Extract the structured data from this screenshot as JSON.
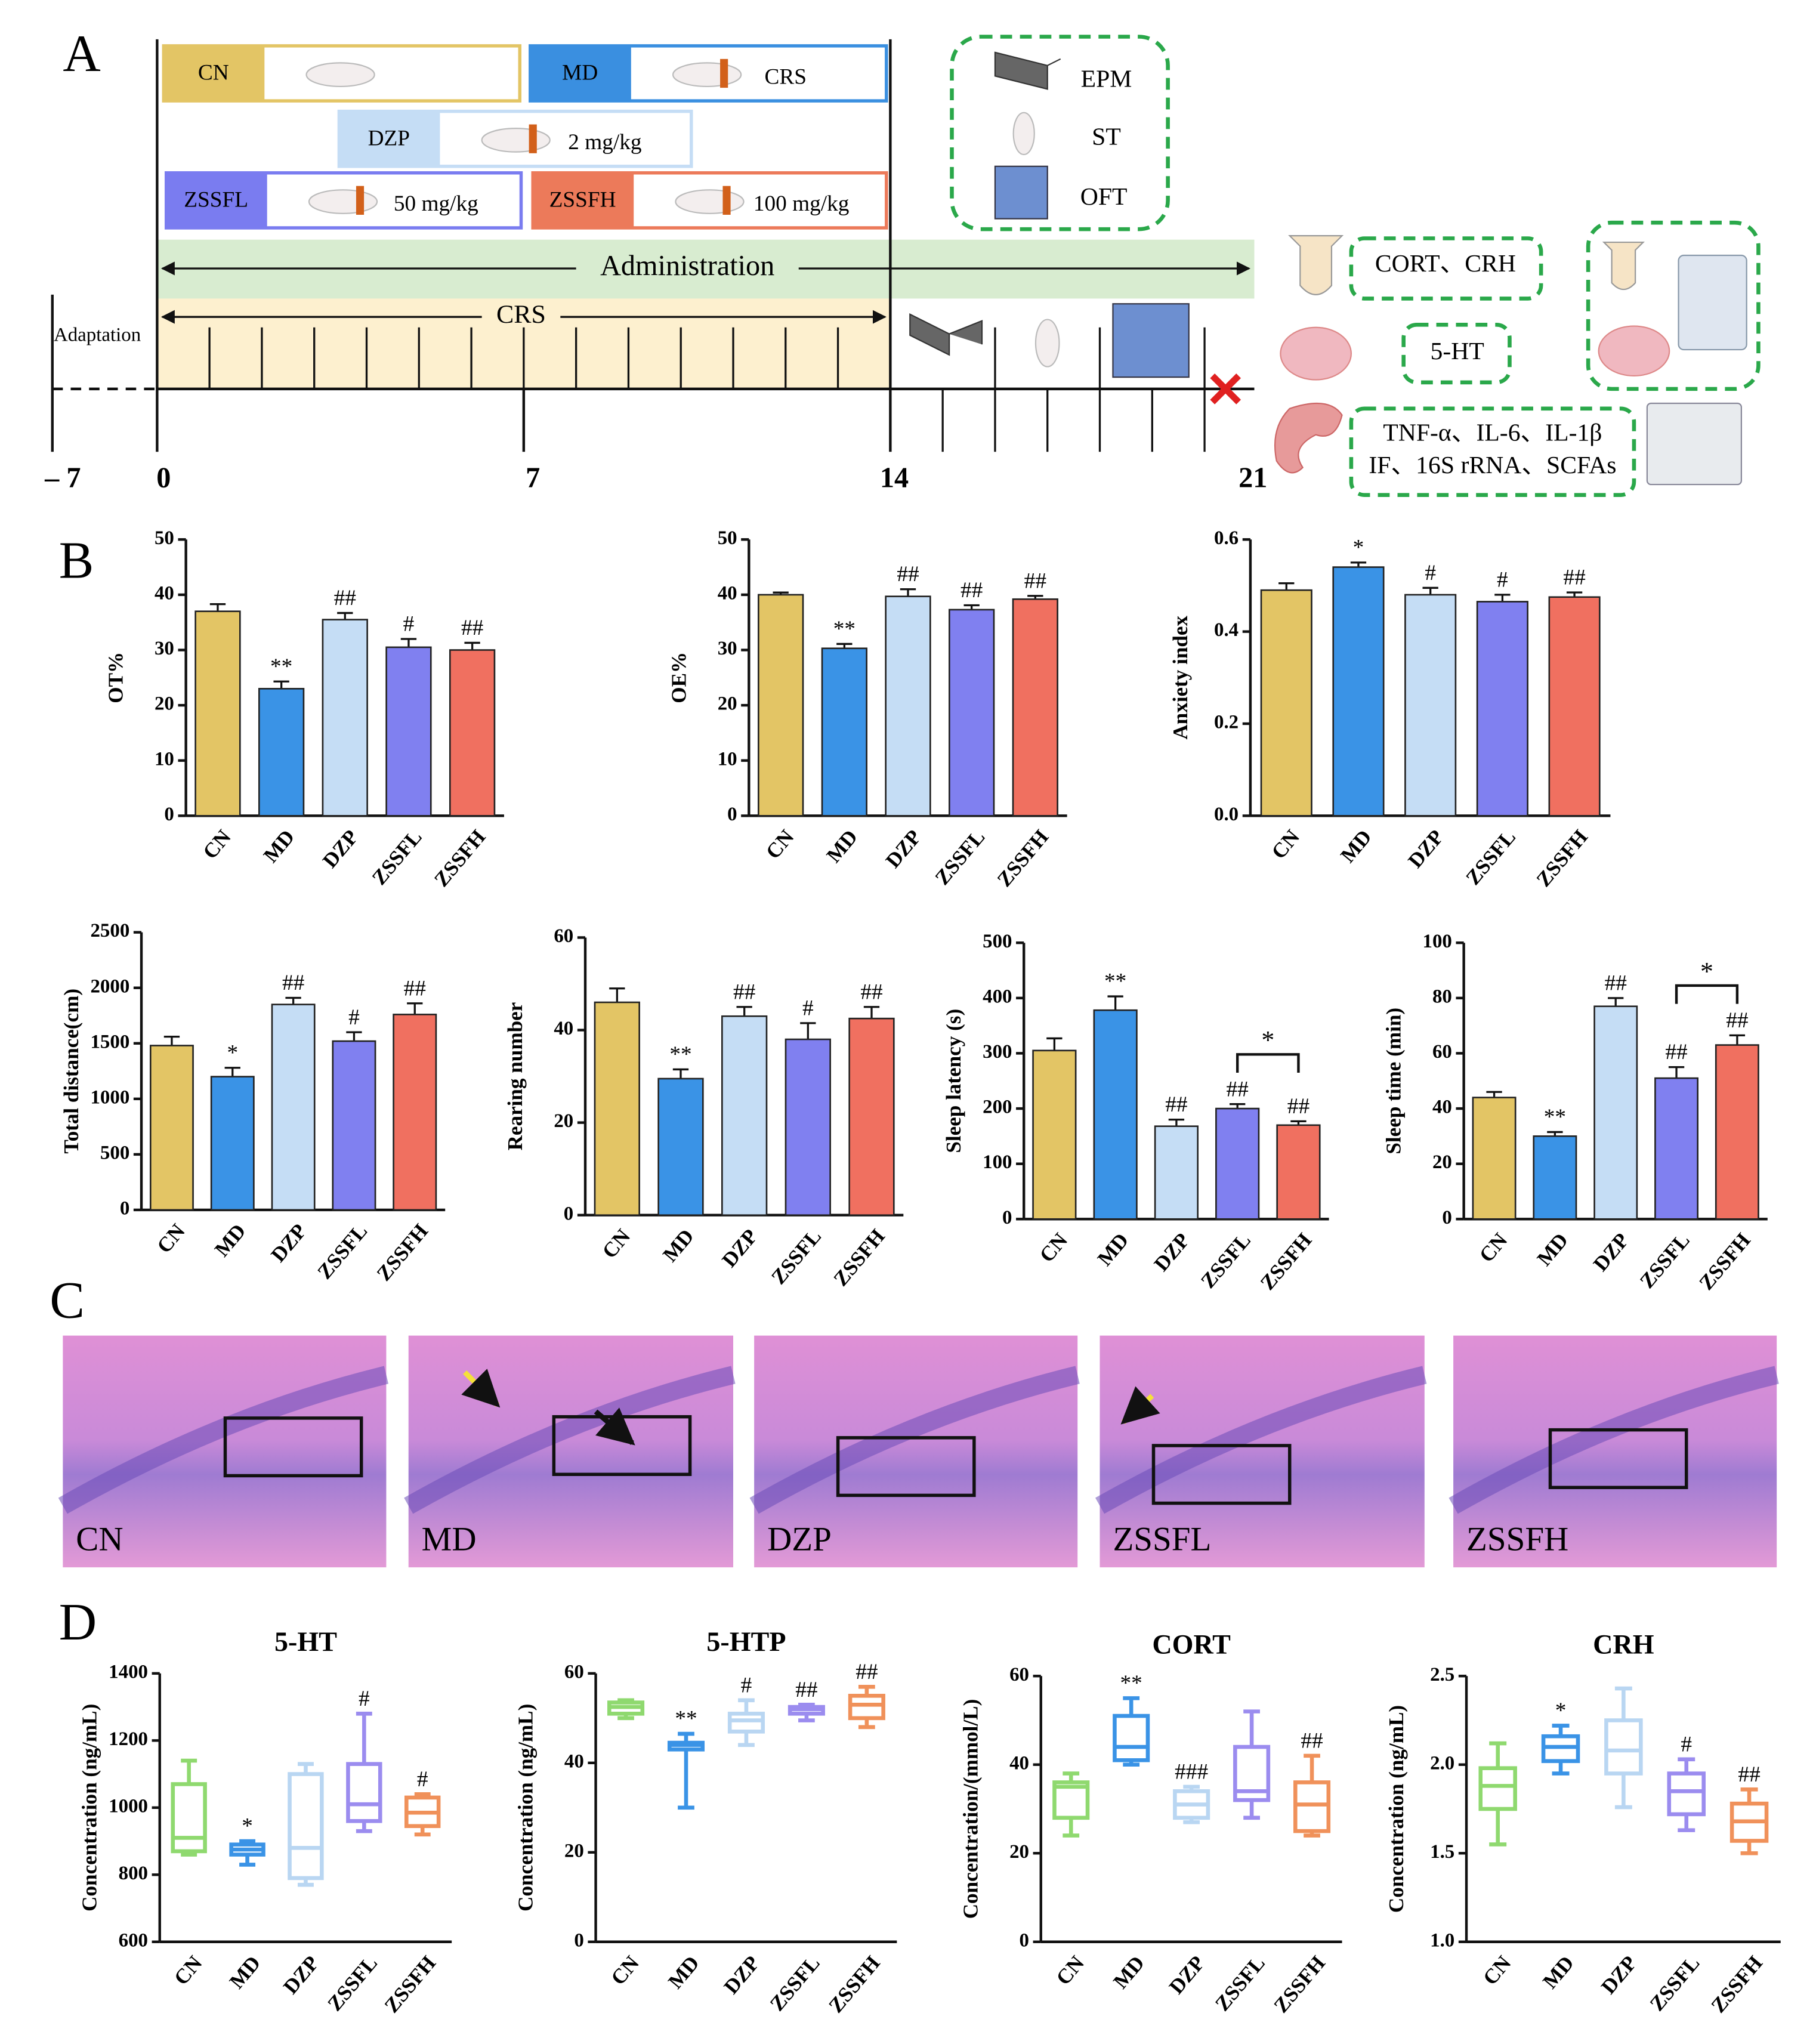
{
  "panel_labels": [
    "A",
    "B",
    "C",
    "D"
  ],
  "design": {
    "groups": [
      {
        "name": "CN",
        "color": "#e3c565"
      },
      {
        "name": "MD",
        "note": "CRS",
        "color": "#3a8fe0"
      },
      {
        "name": "DZP",
        "note": "2 mg/kg",
        "color": "#c5ddf5"
      },
      {
        "name": "ZSSFL",
        "note": "50 mg/kg",
        "color": "#7a7cf0"
      },
      {
        "name": "ZSSFH",
        "note": "100 mg/kg",
        "color": "#ec7a5a"
      }
    ],
    "tests": [
      "EPM",
      "ST",
      "OFT"
    ],
    "administration": "Administration",
    "crs": "CRS",
    "adaptation": "Adaptation",
    "days": [
      "– 7",
      "0",
      "7",
      "14",
      "21"
    ],
    "assays": [
      "CORT、CRH",
      "5-HT",
      "TNF-α、IL-6、IL-1β",
      "IF、16S rRNA、SCFAs"
    ]
  },
  "histology": {
    "labels": [
      "CN",
      "MD",
      "DZP",
      "ZSSFL",
      "ZSSFH"
    ]
  },
  "chart_data": [
    {
      "type": "bar",
      "ylabel": "OT%",
      "categories": [
        "CN",
        "MD",
        "DZP",
        "ZSSFL",
        "ZSSFH"
      ],
      "values": [
        37,
        23,
        35.5,
        30.5,
        30
      ],
      "errors": [
        1.3,
        1.3,
        1.2,
        1.5,
        1.3
      ],
      "colors": [
        "#e3c565",
        "#3a93e6",
        "#c5ddf5",
        "#8080f0",
        "#f07060"
      ],
      "annotations": [
        null,
        "**",
        "##",
        "#",
        "##"
      ],
      "ylim": [
        0,
        50
      ],
      "yticks": [
        0,
        10,
        20,
        30,
        40,
        50
      ]
    },
    {
      "type": "bar",
      "ylabel": "OE%",
      "categories": [
        "CN",
        "MD",
        "DZP",
        "ZSSFL",
        "ZSSFH"
      ],
      "values": [
        40,
        30.3,
        39.7,
        37.3,
        39.2
      ],
      "errors": [
        0.4,
        0.8,
        1.3,
        0.8,
        0.6
      ],
      "colors": [
        "#e3c565",
        "#3a93e6",
        "#c5ddf5",
        "#8080f0",
        "#f07060"
      ],
      "annotations": [
        null,
        "**",
        "##",
        "##",
        "##"
      ],
      "ylim": [
        0,
        50
      ],
      "yticks": [
        0,
        10,
        20,
        30,
        40,
        50
      ]
    },
    {
      "type": "bar",
      "ylabel": "Anxiety index",
      "categories": [
        "CN",
        "MD",
        "DZP",
        "ZSSFL",
        "ZSSFH"
      ],
      "values": [
        0.49,
        0.54,
        0.48,
        0.465,
        0.475
      ],
      "errors": [
        0.015,
        0.01,
        0.015,
        0.015,
        0.01
      ],
      "colors": [
        "#e3c565",
        "#3a93e6",
        "#c5ddf5",
        "#8080f0",
        "#f07060"
      ],
      "annotations": [
        null,
        "*",
        "#",
        "#",
        "##"
      ],
      "ylim": [
        0,
        0.6
      ],
      "yticks": [
        {
          "value": 0,
          "label": "0.0"
        },
        0.2,
        0.4,
        0.6
      ]
    },
    {
      "type": "bar",
      "ylabel": "Total distance(cm)",
      "categories": [
        "CN",
        "MD",
        "DZP",
        "ZSSFL",
        "ZSSFH"
      ],
      "values": [
        1480,
        1200,
        1850,
        1520,
        1760
      ],
      "errors": [
        80,
        80,
        60,
        80,
        100
      ],
      "colors": [
        "#e3c565",
        "#3a93e6",
        "#c5ddf5",
        "#8080f0",
        "#f07060"
      ],
      "annotations": [
        null,
        "*",
        "##",
        "#",
        "##"
      ],
      "ylim": [
        0,
        2500
      ],
      "yticks": [
        0,
        500,
        1000,
        1500,
        2000,
        2500
      ]
    },
    {
      "type": "bar",
      "ylabel": "Rearing number",
      "categories": [
        "CN",
        "MD",
        "DZP",
        "ZSSFL",
        "ZSSFH"
      ],
      "values": [
        46,
        29.5,
        43,
        38,
        42.5
      ],
      "errors": [
        3,
        2,
        2,
        3.5,
        2.5
      ],
      "colors": [
        "#e3c565",
        "#3a93e6",
        "#c5ddf5",
        "#8080f0",
        "#f07060"
      ],
      "annotations": [
        null,
        "**",
        "##",
        "#",
        "##"
      ],
      "ylim": [
        0,
        60
      ],
      "yticks": [
        0,
        20,
        40,
        60
      ]
    },
    {
      "type": "bar",
      "ylabel": "Sleep latency (s)",
      "categories": [
        "CN",
        "MD",
        "DZP",
        "ZSSFL",
        "ZSSFH"
      ],
      "values": [
        305,
        378,
        168,
        200,
        170
      ],
      "errors": [
        22,
        25,
        12,
        8,
        7
      ],
      "colors": [
        "#e3c565",
        "#3a93e6",
        "#c5ddf5",
        "#8080f0",
        "#f07060"
      ],
      "annotations": [
        null,
        "**",
        "##",
        "##",
        "##"
      ],
      "comparisons": [
        {
          "groups": [
            "ZSSFL",
            "ZSSFH"
          ],
          "label": "*"
        }
      ],
      "ylim": [
        0,
        500
      ],
      "yticks": [
        0,
        100,
        200,
        300,
        400,
        500
      ]
    },
    {
      "type": "bar",
      "ylabel": "Sleep time (min)",
      "categories": [
        "CN",
        "MD",
        "DZP",
        "ZSSFL",
        "ZSSFH"
      ],
      "values": [
        44,
        30,
        77,
        51,
        63
      ],
      "errors": [
        2,
        1.5,
        3,
        4,
        3.5
      ],
      "colors": [
        "#e3c565",
        "#3a93e6",
        "#c5ddf5",
        "#8080f0",
        "#f07060"
      ],
      "annotations": [
        null,
        "**",
        "##",
        "##",
        "##"
      ],
      "comparisons": [
        {
          "groups": [
            "ZSSFL",
            "ZSSFH"
          ],
          "label": "*"
        }
      ],
      "ylim": [
        0,
        100
      ],
      "yticks": [
        0,
        20,
        40,
        60,
        80,
        100
      ]
    },
    {
      "type": "box",
      "title": "5-HT",
      "ylabel": "Concentration (ng/mL)",
      "categories": [
        "CN",
        "MD",
        "DZP",
        "ZSSFL",
        "ZSSFH"
      ],
      "boxes": [
        {
          "min": 860,
          "q1": 870,
          "median": 910,
          "q3": 1070,
          "max": 1140
        },
        {
          "min": 830,
          "q1": 860,
          "median": 875,
          "q3": 890,
          "max": 900
        },
        {
          "min": 770,
          "q1": 790,
          "median": 880,
          "q3": 1100,
          "max": 1130
        },
        {
          "min": 930,
          "q1": 960,
          "median": 1010,
          "q3": 1130,
          "max": 1280
        },
        {
          "min": 920,
          "q1": 945,
          "median": 985,
          "q3": 1030,
          "max": 1040
        }
      ],
      "colors": [
        "#8fd96f",
        "#3a93e6",
        "#b9d6f2",
        "#9b8cef",
        "#f0915a"
      ],
      "annotations": [
        null,
        "*",
        null,
        "#",
        "#"
      ],
      "ylim": [
        600,
        1400
      ],
      "yticks": [
        600,
        800,
        1000,
        1200,
        1400
      ]
    },
    {
      "type": "box",
      "title": "5-HTP",
      "ylabel": "Concentration (ng/mL)",
      "categories": [
        "CN",
        "MD",
        "DZP",
        "ZSSFL",
        "ZSSFH"
      ],
      "boxes": [
        {
          "min": 50,
          "q1": 51,
          "median": 52.5,
          "q3": 53.5,
          "max": 54
        },
        {
          "min": 30,
          "q1": 43,
          "median": 44,
          "q3": 44.5,
          "max": 46.5
        },
        {
          "min": 44,
          "q1": 47,
          "median": 49.5,
          "q3": 51,
          "max": 54
        },
        {
          "min": 49.5,
          "q1": 51,
          "median": 52,
          "q3": 52.5,
          "max": 53
        },
        {
          "min": 48,
          "q1": 50,
          "median": 53,
          "q3": 55,
          "max": 57
        }
      ],
      "colors": [
        "#8fd96f",
        "#3a93e6",
        "#b9d6f2",
        "#9b8cef",
        "#f0915a"
      ],
      "annotations": [
        null,
        "**",
        "#",
        "##",
        "##"
      ],
      "ylim": [
        0,
        60
      ],
      "yticks": [
        0,
        20,
        40,
        60
      ]
    },
    {
      "type": "box",
      "title": "CORT",
      "ylabel": "Concentration/(mmol/L)",
      "categories": [
        "CN",
        "MD",
        "DZP",
        "ZSSFL",
        "ZSSFH"
      ],
      "boxes": [
        {
          "min": 24,
          "q1": 28,
          "median": 35,
          "q3": 36,
          "max": 38
        },
        {
          "min": 40,
          "q1": 41,
          "median": 44,
          "q3": 51,
          "max": 55
        },
        {
          "min": 27,
          "q1": 28,
          "median": 31,
          "q3": 34,
          "max": 35
        },
        {
          "min": 28,
          "q1": 32,
          "median": 34,
          "q3": 44,
          "max": 52
        },
        {
          "min": 24,
          "q1": 25,
          "median": 31,
          "q3": 36,
          "max": 42
        }
      ],
      "colors": [
        "#8fd96f",
        "#3a93e6",
        "#b9d6f2",
        "#9b8cef",
        "#f0915a"
      ],
      "annotations": [
        null,
        "**",
        "###",
        null,
        "##"
      ],
      "ylim": [
        0,
        60
      ],
      "yticks": [
        0,
        20,
        40,
        60
      ]
    },
    {
      "type": "box",
      "title": "CRH",
      "ylabel": "Concentration (ng/mL)",
      "categories": [
        "CN",
        "MD",
        "DZP",
        "ZSSFL",
        "ZSSFH"
      ],
      "boxes": [
        {
          "min": 1.55,
          "q1": 1.75,
          "median": 1.88,
          "q3": 1.98,
          "max": 2.12
        },
        {
          "min": 1.95,
          "q1": 2.02,
          "median": 2.1,
          "q3": 2.16,
          "max": 2.22
        },
        {
          "min": 1.76,
          "q1": 1.95,
          "median": 2.08,
          "q3": 2.25,
          "max": 2.43
        },
        {
          "min": 1.63,
          "q1": 1.72,
          "median": 1.85,
          "q3": 1.95,
          "max": 2.03
        },
        {
          "min": 1.5,
          "q1": 1.57,
          "median": 1.68,
          "q3": 1.78,
          "max": 1.86
        }
      ],
      "colors": [
        "#8fd96f",
        "#3a93e6",
        "#b9d6f2",
        "#9b8cef",
        "#f0915a"
      ],
      "annotations": [
        null,
        "*",
        null,
        "#",
        "##"
      ],
      "ylim": [
        1,
        2.5
      ],
      "yticks": [
        {
          "value": 1,
          "label": "1.0"
        },
        1.5,
        {
          "value": 2,
          "label": "2.0"
        },
        2.5
      ]
    }
  ]
}
